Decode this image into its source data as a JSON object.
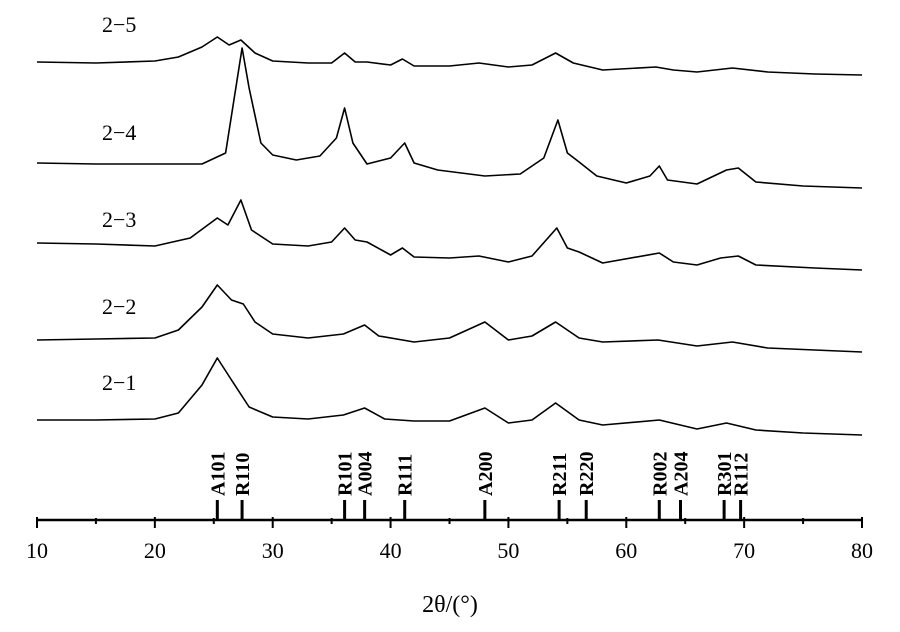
{
  "chart_data": {
    "type": "line",
    "xlabel": "2θ/(°)",
    "xlim": [
      10,
      80
    ],
    "xticks": [
      10,
      20,
      30,
      40,
      50,
      60,
      70,
      80
    ],
    "minor_xticks": [
      15,
      25,
      35,
      45,
      55,
      65,
      75
    ],
    "color": "#000000",
    "series": [
      {
        "name": "2−5",
        "x": [
          10,
          15,
          20,
          22,
          24,
          25.3,
          26.3,
          27.3,
          28.5,
          30,
          33,
          35,
          36.1,
          37,
          38,
          40,
          41,
          42,
          45,
          47.5,
          50,
          52,
          54,
          55.5,
          58,
          62.5,
          64,
          66,
          69,
          72,
          76,
          80
        ],
        "values": [
          13,
          12,
          14,
          18,
          28,
          38,
          30,
          35,
          22,
          14,
          12,
          12,
          22,
          13,
          13,
          10,
          16,
          9,
          9,
          12,
          8,
          10,
          22,
          12,
          5,
          8,
          5,
          3,
          7,
          3,
          1,
          0
        ]
      },
      {
        "name": "2−4",
        "x": [
          10,
          15,
          20,
          24,
          26,
          27.4,
          28,
          29,
          30,
          32,
          34,
          35.4,
          36.1,
          36.8,
          38,
          40,
          41.2,
          42,
          44,
          48,
          51,
          53,
          54.2,
          55,
          56,
          57.5,
          60,
          62,
          62.8,
          63.5,
          66,
          68.5,
          69.5,
          71,
          75,
          80
        ],
        "values": [
          25,
          24,
          24,
          24,
          35,
          140,
          100,
          45,
          33,
          28,
          32,
          50,
          80,
          45,
          24,
          30,
          45,
          25,
          18,
          12,
          14,
          30,
          68,
          35,
          26,
          12,
          5,
          12,
          22,
          8,
          4,
          18,
          20,
          6,
          2,
          0
        ]
      },
      {
        "name": "2−3",
        "x": [
          10,
          15,
          20,
          23,
          25.3,
          26.2,
          27.3,
          28.2,
          30,
          33,
          35,
          36.1,
          37,
          38,
          40,
          41,
          42,
          45,
          47.5,
          50,
          52,
          54.1,
          55,
          56,
          58,
          62.8,
          64,
          66,
          68,
          69.5,
          71,
          76,
          80
        ],
        "values": [
          27,
          26,
          24,
          32,
          52,
          45,
          70,
          40,
          26,
          24,
          28,
          42,
          30,
          28,
          15,
          22,
          13,
          12,
          14,
          8,
          14,
          42,
          22,
          18,
          7,
          17,
          8,
          5,
          12,
          14,
          5,
          2,
          0
        ]
      },
      {
        "name": "2−2",
        "x": [
          10,
          15,
          20,
          22,
          24,
          25.3,
          26.5,
          27.5,
          28.5,
          30,
          33,
          36,
          37.8,
          39,
          42,
          45,
          48,
          50,
          52,
          54,
          56,
          58,
          62.7,
          66,
          69,
          72,
          80
        ],
        "values": [
          12,
          13,
          14,
          22,
          45,
          67,
          52,
          48,
          30,
          18,
          14,
          18,
          27,
          16,
          10,
          14,
          30,
          12,
          16,
          30,
          14,
          10,
          12,
          6,
          10,
          4,
          0
        ]
      },
      {
        "name": "2−1",
        "x": [
          10,
          15,
          20,
          22,
          24,
          25.3,
          26.5,
          28,
          30,
          33,
          36,
          37.8,
          39.5,
          42,
          45,
          48,
          50,
          52,
          54,
          56,
          58,
          62.8,
          66,
          68.5,
          71,
          75,
          80
        ],
        "values": [
          15,
          15,
          16,
          22,
          50,
          77,
          55,
          28,
          18,
          16,
          20,
          27,
          16,
          14,
          14,
          27,
          12,
          15,
          32,
          15,
          10,
          15,
          6,
          12,
          5,
          2,
          0
        ]
      }
    ],
    "references": [
      {
        "label": "A101",
        "x": 25.3
      },
      {
        "label": "R110",
        "x": 27.4
      },
      {
        "label": "R101",
        "x": 36.1
      },
      {
        "label": "A004",
        "x": 37.8
      },
      {
        "label": "R111",
        "x": 41.2
      },
      {
        "label": "A200",
        "x": 48.0
      },
      {
        "label": "R211",
        "x": 54.3
      },
      {
        "label": "R220",
        "x": 56.6
      },
      {
        "label": "R002",
        "x": 62.8
      },
      {
        "label": "A204",
        "x": 64.6
      },
      {
        "label": "R301",
        "x": 68.3
      },
      {
        "label": "R112",
        "x": 69.7
      }
    ]
  }
}
